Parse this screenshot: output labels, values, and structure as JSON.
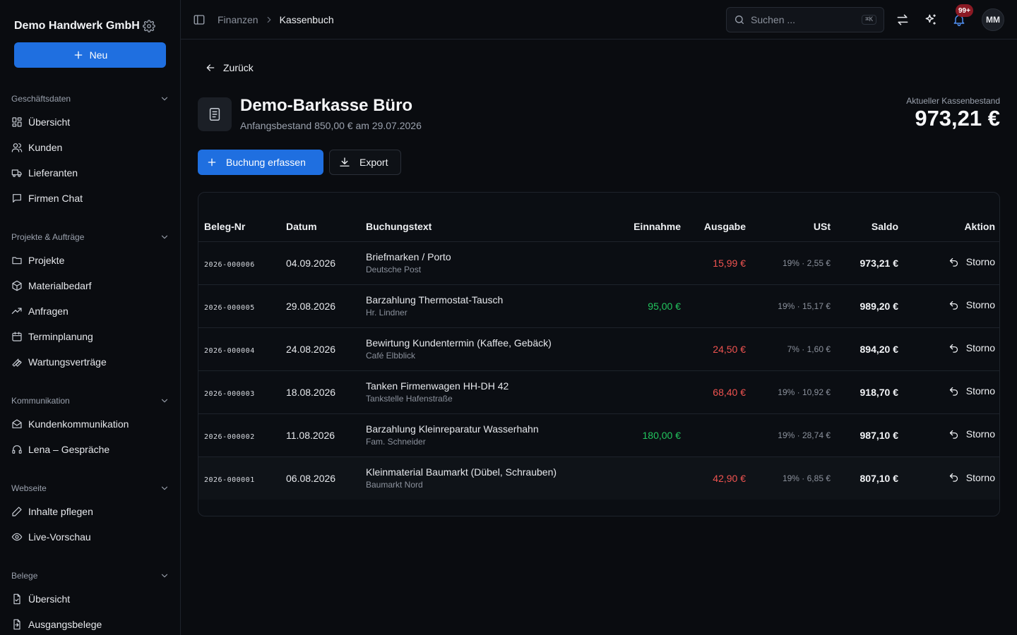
{
  "sidebar": {
    "company_name": "Demo Handwerk GmbH",
    "new_label": "Neu",
    "groups": [
      {
        "label": "Geschäftsdaten",
        "items": [
          {
            "label": "Übersicht",
            "icon": "dashboard-icon"
          },
          {
            "label": "Kunden",
            "icon": "users-icon"
          },
          {
            "label": "Lieferanten",
            "icon": "truck-icon"
          },
          {
            "label": "Firmen Chat",
            "icon": "chat-icon"
          }
        ]
      },
      {
        "label": "Projekte & Aufträge",
        "items": [
          {
            "label": "Projekte",
            "icon": "folder-icon"
          },
          {
            "label": "Materialbedarf",
            "icon": "package-icon"
          },
          {
            "label": "Anfragen",
            "icon": "trending-icon"
          },
          {
            "label": "Terminplanung",
            "icon": "calendar-icon"
          },
          {
            "label": "Wartungsverträge",
            "icon": "wrench-icon"
          }
        ]
      },
      {
        "label": "Kommunikation",
        "items": [
          {
            "label": "Kundenkommunikation",
            "icon": "mail-open-icon"
          },
          {
            "label": "Lena – Gespräche",
            "icon": "headset-icon"
          }
        ]
      },
      {
        "label": "Webseite",
        "items": [
          {
            "label": "Inhalte pflegen",
            "icon": "pen-icon"
          },
          {
            "label": "Live-Vorschau",
            "icon": "eye-icon"
          }
        ]
      },
      {
        "label": "Belege",
        "items": [
          {
            "label": "Übersicht",
            "icon": "file-check-icon"
          },
          {
            "label": "Ausgangsbelege",
            "icon": "file-out-icon"
          }
        ]
      }
    ]
  },
  "topbar": {
    "breadcrumb": [
      "Finanzen",
      "Kassenbuch"
    ],
    "search_placeholder": "Suchen ...",
    "search_shortcut": "⌘K",
    "notification_count": "99+",
    "avatar_initials": "MM"
  },
  "page": {
    "back_label": "Zurück",
    "title": "Demo-Barkasse Büro",
    "subtitle": "Anfangsbestand 850,00 € am 29.07.2026",
    "balance_label": "Aktueller Kassenbestand",
    "balance_value": "973,21 €",
    "primary_action": "Buchung erfassen",
    "export_action": "Export"
  },
  "table": {
    "headers": {
      "doc": "Beleg-Nr",
      "date": "Datum",
      "text": "Buchungstext",
      "income": "Einnahme",
      "expense": "Ausgabe",
      "vat": "USt",
      "saldo": "Saldo",
      "action": "Aktion"
    },
    "rows": [
      {
        "doc": "2026-000006",
        "date": "04.09.2026",
        "text": "Briefmarken / Porto",
        "sub": "Deutsche Post",
        "income": "",
        "expense": "15,99 €",
        "vat": "19% · 2,55 €",
        "saldo": "973,21 €",
        "action": "Storno"
      },
      {
        "doc": "2026-000005",
        "date": "29.08.2026",
        "text": "Barzahlung Thermostat-Tausch",
        "sub": "Hr. Lindner",
        "income": "95,00 €",
        "expense": "",
        "vat": "19% · 15,17 €",
        "saldo": "989,20 €",
        "action": "Storno"
      },
      {
        "doc": "2026-000004",
        "date": "24.08.2026",
        "text": "Bewirtung Kundentermin (Kaffee, Gebäck)",
        "sub": "Café Elbblick",
        "income": "",
        "expense": "24,50 €",
        "vat": "7% · 1,60 €",
        "saldo": "894,20 €",
        "action": "Storno"
      },
      {
        "doc": "2026-000003",
        "date": "18.08.2026",
        "text": "Tanken Firmenwagen HH-DH 42",
        "sub": "Tankstelle Hafenstraße",
        "income": "",
        "expense": "68,40 €",
        "vat": "19% · 10,92 €",
        "saldo": "918,70 €",
        "action": "Storno"
      },
      {
        "doc": "2026-000002",
        "date": "11.08.2026",
        "text": "Barzahlung Kleinreparatur Wasserhahn",
        "sub": "Fam. Schneider",
        "income": "180,00 €",
        "expense": "",
        "vat": "19% · 28,74 €",
        "saldo": "987,10 €",
        "action": "Storno"
      },
      {
        "doc": "2026-000001",
        "date": "06.08.2026",
        "text": "Kleinmaterial Baumarkt (Dübel, Schrauben)",
        "sub": "Baumarkt Nord",
        "income": "",
        "expense": "42,90 €",
        "vat": "19% · 6,85 €",
        "saldo": "807,10 €",
        "action": "Storno"
      }
    ]
  },
  "colors": {
    "accent": "#1f6fe0",
    "income": "#22c55e",
    "expense": "#ef5350",
    "background": "#0a0c10"
  }
}
